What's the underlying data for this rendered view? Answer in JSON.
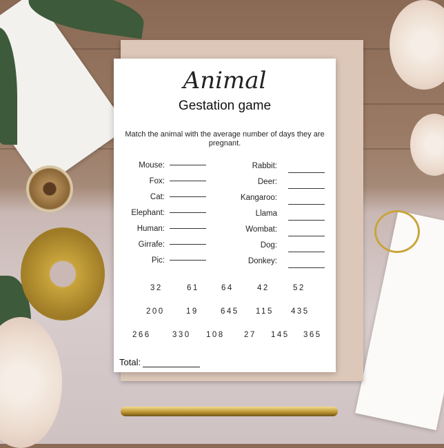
{
  "card": {
    "title": "Animal",
    "subtitle": "Gestation game",
    "instructions": "Match the animal with the average number of days they are pregnant.",
    "left_animals": [
      "Mouse:",
      "Fox:",
      "Cat:",
      "Elephant:",
      "Human:",
      "Girrafe:",
      "Pic:"
    ],
    "right_animals": [
      "Rabbit:",
      "Deer:",
      "Kangaroo:",
      "Llama",
      "Wombat:",
      "Dog:",
      "Donkey:"
    ],
    "numbers": {
      "row1": [
        "32",
        "61",
        "64",
        "42",
        "52"
      ],
      "row2": [
        "200",
        "19",
        "645",
        "115",
        "435"
      ],
      "row3": [
        "266",
        "330",
        "108",
        "27",
        "145",
        "365"
      ]
    },
    "total_label": "Total:"
  },
  "colors": {
    "card": "#ffffff",
    "envelope": "#dcc7b8",
    "wood": "#8a6a55",
    "gold": "#c9a43c"
  }
}
